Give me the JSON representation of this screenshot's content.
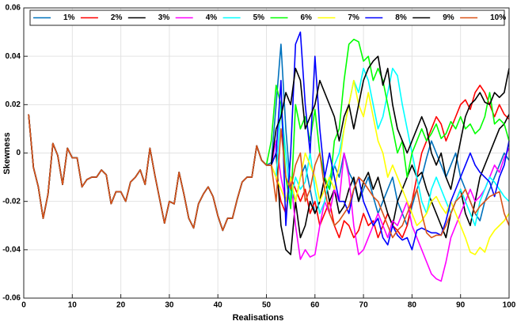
{
  "chart_data": {
    "type": "line",
    "xlabel": "Realisations",
    "ylabel": "Skewness",
    "x": [
      1,
      2,
      3,
      4,
      5,
      6,
      7,
      8,
      9,
      10,
      11,
      12,
      13,
      14,
      15,
      16,
      17,
      18,
      19,
      20,
      21,
      22,
      23,
      24,
      25,
      26,
      27,
      28,
      29,
      30,
      31,
      32,
      33,
      34,
      35,
      36,
      37,
      38,
      39,
      40,
      41,
      42,
      43,
      44,
      45,
      46,
      47,
      48,
      49,
      50,
      51,
      52,
      53,
      54,
      55,
      56,
      57,
      58,
      59,
      60,
      61,
      62,
      63,
      64,
      65,
      66,
      67,
      68,
      69,
      70,
      71,
      72,
      73,
      74,
      75,
      76,
      77,
      78,
      79,
      80,
      81,
      82,
      83,
      84,
      85,
      86,
      87,
      88,
      89,
      90,
      91,
      92,
      93,
      94,
      95,
      96,
      97,
      98,
      99,
      100
    ],
    "xlim": [
      0,
      100
    ],
    "xticks": [
      0,
      10,
      20,
      30,
      40,
      50,
      60,
      70,
      80,
      90,
      100
    ],
    "ylim": [
      -0.06,
      0.06
    ],
    "yticks": [
      -0.06,
      -0.04,
      -0.02,
      0,
      0.02,
      0.04,
      0.06
    ],
    "grid": true,
    "legend": "top",
    "series": [
      {
        "name": "1%",
        "color": "#0072bd",
        "values": [
          0.016,
          -0.006,
          -0.014,
          -0.027,
          -0.017,
          0.004,
          -0.001,
          -0.013,
          0.002,
          -0.002,
          -0.002,
          -0.014,
          -0.011,
          -0.01,
          -0.01,
          -0.007,
          -0.009,
          -0.021,
          -0.016,
          -0.016,
          -0.02,
          -0.012,
          -0.01,
          -0.007,
          -0.013,
          0.002,
          -0.009,
          -0.019,
          -0.029,
          -0.02,
          -0.021,
          -0.008,
          -0.017,
          -0.027,
          -0.031,
          -0.021,
          -0.017,
          -0.014,
          -0.018,
          -0.026,
          -0.032,
          -0.027,
          -0.027,
          -0.019,
          -0.012,
          -0.01,
          -0.01,
          0.003,
          -0.003,
          -0.005,
          -0.004,
          0.02,
          0.045,
          0.01,
          -0.015,
          -0.02,
          -0.01,
          -0.005,
          -0.015,
          -0.025,
          -0.02,
          -0.01,
          -0.015,
          -0.005,
          -0.01,
          0.0,
          -0.008,
          -0.012,
          -0.02,
          -0.015,
          -0.01,
          -0.018,
          -0.025,
          -0.02,
          -0.015,
          -0.01,
          -0.02,
          -0.025,
          -0.03,
          -0.022,
          -0.015,
          -0.01,
          -0.002,
          0.005,
          0.0,
          -0.005,
          -0.01,
          -0.005,
          0.0,
          -0.01,
          -0.015,
          -0.02,
          -0.025,
          -0.028,
          -0.02,
          -0.015,
          -0.01,
          -0.005,
          0.0,
          -0.003
        ]
      },
      {
        "name": "2%",
        "color": "#ff0000",
        "values": [
          0.016,
          -0.006,
          -0.014,
          -0.027,
          -0.017,
          0.004,
          -0.001,
          -0.013,
          0.002,
          -0.002,
          -0.002,
          -0.014,
          -0.011,
          -0.01,
          -0.01,
          -0.007,
          -0.009,
          -0.021,
          -0.016,
          -0.016,
          -0.02,
          -0.012,
          -0.01,
          -0.007,
          -0.013,
          0.002,
          -0.009,
          -0.019,
          -0.029,
          -0.02,
          -0.021,
          -0.008,
          -0.017,
          -0.027,
          -0.031,
          -0.021,
          -0.017,
          -0.014,
          -0.018,
          -0.026,
          -0.032,
          -0.027,
          -0.027,
          -0.019,
          -0.012,
          -0.01,
          -0.01,
          0.003,
          -0.003,
          -0.005,
          -0.005,
          -0.01,
          -0.02,
          -0.025,
          -0.01,
          -0.015,
          -0.02,
          -0.015,
          -0.025,
          -0.02,
          -0.03,
          -0.025,
          -0.02,
          -0.03,
          -0.035,
          -0.028,
          -0.03,
          -0.035,
          -0.032,
          -0.025,
          -0.03,
          -0.028,
          -0.035,
          -0.03,
          -0.025,
          -0.03,
          -0.032,
          -0.035,
          -0.03,
          -0.02,
          -0.01,
          0.0,
          0.005,
          0.01,
          0.015,
          0.012,
          0.005,
          0.01,
          0.015,
          0.02,
          0.022,
          0.018,
          0.025,
          0.028,
          0.025,
          0.02,
          0.015,
          0.02,
          0.016,
          0.014
        ]
      },
      {
        "name": "3%",
        "color": "#000000",
        "values": [
          0.016,
          -0.006,
          -0.014,
          -0.027,
          -0.017,
          0.004,
          -0.001,
          -0.013,
          0.002,
          -0.002,
          -0.002,
          -0.014,
          -0.011,
          -0.01,
          -0.01,
          -0.007,
          -0.009,
          -0.021,
          -0.016,
          -0.016,
          -0.02,
          -0.012,
          -0.01,
          -0.007,
          -0.013,
          0.002,
          -0.009,
          -0.019,
          -0.029,
          -0.02,
          -0.021,
          -0.008,
          -0.017,
          -0.027,
          -0.031,
          -0.021,
          -0.017,
          -0.014,
          -0.018,
          -0.026,
          -0.032,
          -0.027,
          -0.027,
          -0.019,
          -0.012,
          -0.01,
          -0.01,
          0.003,
          -0.003,
          -0.005,
          -0.005,
          0.0,
          -0.03,
          -0.04,
          -0.042,
          -0.02,
          -0.035,
          -0.03,
          -0.02,
          -0.025,
          -0.02,
          -0.01,
          -0.02,
          -0.015,
          -0.025,
          -0.022,
          -0.015,
          -0.01,
          -0.02,
          -0.012,
          -0.008,
          -0.015,
          -0.01,
          -0.018,
          -0.025,
          -0.03,
          -0.02,
          -0.015,
          -0.01,
          -0.005,
          -0.01,
          -0.008,
          -0.015,
          -0.02,
          -0.025,
          -0.03,
          -0.035,
          -0.025,
          -0.02,
          -0.015,
          -0.025,
          -0.03,
          -0.02,
          -0.01,
          -0.005,
          0.0,
          0.005,
          0.01,
          0.012,
          0.016
        ]
      },
      {
        "name": "4%",
        "color": "#ff00ff",
        "values": [
          0.016,
          -0.006,
          -0.014,
          -0.027,
          -0.017,
          0.004,
          -0.001,
          -0.013,
          0.002,
          -0.002,
          -0.002,
          -0.014,
          -0.011,
          -0.01,
          -0.01,
          -0.007,
          -0.009,
          -0.021,
          -0.016,
          -0.016,
          -0.02,
          -0.012,
          -0.01,
          -0.007,
          -0.013,
          0.002,
          -0.009,
          -0.019,
          -0.029,
          -0.02,
          -0.021,
          -0.008,
          -0.017,
          -0.027,
          -0.031,
          -0.021,
          -0.017,
          -0.014,
          -0.018,
          -0.026,
          -0.032,
          -0.027,
          -0.027,
          -0.019,
          -0.012,
          -0.01,
          -0.01,
          0.003,
          -0.003,
          -0.005,
          -0.005,
          0.005,
          -0.01,
          -0.02,
          -0.01,
          -0.03,
          -0.044,
          -0.04,
          -0.043,
          -0.042,
          -0.03,
          -0.02,
          -0.025,
          -0.015,
          -0.02,
          0.0,
          -0.01,
          -0.03,
          -0.042,
          -0.04,
          -0.035,
          -0.03,
          -0.025,
          -0.03,
          -0.035,
          -0.028,
          -0.03,
          -0.025,
          -0.02,
          -0.03,
          -0.035,
          -0.04,
          -0.045,
          -0.05,
          -0.052,
          -0.053,
          -0.045,
          -0.035,
          -0.03,
          -0.025,
          -0.02,
          -0.015,
          -0.02,
          -0.018,
          -0.015,
          -0.01,
          -0.005,
          -0.008,
          -0.002,
          0.002
        ]
      },
      {
        "name": "5%",
        "color": "#00ffff",
        "values": [
          0.016,
          -0.006,
          -0.014,
          -0.027,
          -0.017,
          0.004,
          -0.001,
          -0.013,
          0.002,
          -0.002,
          -0.002,
          -0.014,
          -0.011,
          -0.01,
          -0.01,
          -0.007,
          -0.009,
          -0.021,
          -0.016,
          -0.016,
          -0.02,
          -0.012,
          -0.01,
          -0.007,
          -0.013,
          0.002,
          -0.009,
          -0.019,
          -0.029,
          -0.02,
          -0.021,
          -0.008,
          -0.017,
          -0.027,
          -0.031,
          -0.021,
          -0.017,
          -0.014,
          -0.018,
          -0.026,
          -0.032,
          -0.027,
          -0.027,
          -0.019,
          -0.012,
          -0.01,
          -0.01,
          0.003,
          -0.003,
          -0.005,
          -0.005,
          -0.01,
          0.02,
          0.0,
          -0.02,
          -0.01,
          -0.015,
          -0.012,
          0.0,
          -0.015,
          -0.025,
          -0.02,
          -0.01,
          -0.005,
          0.0,
          0.01,
          0.02,
          0.03,
          0.025,
          0.035,
          0.03,
          0.02,
          0.01,
          0.015,
          0.025,
          0.035,
          0.032,
          0.02,
          0.01,
          0.0,
          -0.01,
          -0.02,
          -0.025,
          -0.015,
          -0.01,
          -0.015,
          -0.02,
          -0.025,
          -0.02,
          -0.015,
          -0.02,
          -0.025,
          -0.03,
          -0.02,
          -0.015,
          -0.01,
          -0.012,
          -0.015,
          -0.018,
          -0.02
        ]
      },
      {
        "name": "6%",
        "color": "#00ff00",
        "values": [
          0.016,
          -0.006,
          -0.014,
          -0.027,
          -0.017,
          0.004,
          -0.001,
          -0.013,
          0.002,
          -0.002,
          -0.002,
          -0.014,
          -0.011,
          -0.01,
          -0.01,
          -0.007,
          -0.009,
          -0.021,
          -0.016,
          -0.016,
          -0.02,
          -0.012,
          -0.01,
          -0.007,
          -0.013,
          0.002,
          -0.009,
          -0.019,
          -0.029,
          -0.02,
          -0.021,
          -0.008,
          -0.017,
          -0.027,
          -0.031,
          -0.021,
          -0.017,
          -0.014,
          -0.018,
          -0.026,
          -0.032,
          -0.027,
          -0.027,
          -0.019,
          -0.012,
          -0.01,
          -0.01,
          0.003,
          -0.003,
          -0.005,
          0.005,
          0.028,
          0.02,
          -0.01,
          -0.023,
          0.02,
          0.01,
          0.015,
          0.005,
          0.018,
          0.0,
          -0.01,
          -0.015,
          0.005,
          0.01,
          0.03,
          0.045,
          0.047,
          0.046,
          0.038,
          0.04,
          0.03,
          0.035,
          0.03,
          0.02,
          0.01,
          0.0,
          0.005,
          -0.01,
          0.0,
          0.005,
          0.01,
          0.005,
          0.008,
          0.012,
          0.006,
          0.008,
          0.013,
          0.01,
          0.015,
          0.01,
          0.012,
          0.008,
          0.01,
          0.015,
          0.025,
          0.012,
          0.014,
          0.012,
          0.005
        ]
      },
      {
        "name": "7%",
        "color": "#ffff00",
        "values": [
          0.016,
          -0.006,
          -0.014,
          -0.027,
          -0.017,
          0.004,
          -0.001,
          -0.013,
          0.002,
          -0.002,
          -0.002,
          -0.014,
          -0.011,
          -0.01,
          -0.01,
          -0.007,
          -0.009,
          -0.021,
          -0.016,
          -0.016,
          -0.02,
          -0.012,
          -0.01,
          -0.007,
          -0.013,
          0.002,
          -0.009,
          -0.019,
          -0.029,
          -0.02,
          -0.021,
          -0.008,
          -0.017,
          -0.027,
          -0.031,
          -0.021,
          -0.017,
          -0.014,
          -0.018,
          -0.026,
          -0.032,
          -0.027,
          -0.027,
          -0.019,
          -0.012,
          -0.01,
          -0.01,
          0.003,
          -0.003,
          -0.005,
          -0.005,
          -0.01,
          -0.015,
          -0.02,
          -0.01,
          -0.02,
          -0.01,
          0.0,
          -0.005,
          -0.01,
          -0.02,
          -0.015,
          -0.01,
          -0.015,
          -0.005,
          0.01,
          0.02,
          0.03,
          0.02,
          0.015,
          0.025,
          0.015,
          0.005,
          0.0,
          -0.01,
          -0.005,
          -0.01,
          -0.015,
          -0.02,
          -0.025,
          -0.03,
          -0.028,
          -0.025,
          -0.02,
          -0.018,
          -0.022,
          -0.025,
          -0.02,
          -0.025,
          -0.03,
          -0.035,
          -0.041,
          -0.042,
          -0.039,
          -0.041,
          -0.035,
          -0.032,
          -0.03,
          -0.028,
          -0.025
        ]
      },
      {
        "name": "8%",
        "color": "#0000ff",
        "values": [
          0.016,
          -0.006,
          -0.014,
          -0.027,
          -0.017,
          0.004,
          -0.001,
          -0.013,
          0.002,
          -0.002,
          -0.002,
          -0.014,
          -0.011,
          -0.01,
          -0.01,
          -0.007,
          -0.009,
          -0.021,
          -0.016,
          -0.016,
          -0.02,
          -0.012,
          -0.01,
          -0.007,
          -0.013,
          0.002,
          -0.009,
          -0.019,
          -0.029,
          -0.02,
          -0.021,
          -0.008,
          -0.017,
          -0.027,
          -0.031,
          -0.021,
          -0.017,
          -0.014,
          -0.018,
          -0.026,
          -0.032,
          -0.027,
          -0.027,
          -0.019,
          -0.012,
          -0.01,
          -0.01,
          0.003,
          -0.003,
          -0.005,
          -0.005,
          0.0,
          0.03,
          -0.03,
          0.0,
          0.045,
          0.05,
          0.02,
          0.0,
          0.04,
          0.01,
          -0.01,
          0.0,
          -0.01,
          -0.02,
          -0.02,
          -0.025,
          -0.015,
          -0.01,
          -0.02,
          -0.025,
          -0.03,
          -0.027,
          -0.035,
          -0.038,
          -0.03,
          -0.034,
          -0.036,
          -0.035,
          -0.04,
          -0.032,
          -0.031,
          -0.032,
          -0.033,
          -0.033,
          -0.034,
          -0.028,
          -0.02,
          -0.015,
          -0.01,
          -0.005,
          0.0,
          -0.005,
          -0.008,
          -0.01,
          -0.012,
          -0.018,
          -0.01,
          -0.005,
          0.005
        ]
      },
      {
        "name": "9%",
        "color": "#000000",
        "values": [
          0.016,
          -0.006,
          -0.014,
          -0.027,
          -0.017,
          0.004,
          -0.001,
          -0.013,
          0.002,
          -0.002,
          -0.002,
          -0.014,
          -0.011,
          -0.01,
          -0.01,
          -0.007,
          -0.009,
          -0.021,
          -0.016,
          -0.016,
          -0.02,
          -0.012,
          -0.01,
          -0.007,
          -0.013,
          0.002,
          -0.009,
          -0.019,
          -0.029,
          -0.02,
          -0.021,
          -0.008,
          -0.017,
          -0.027,
          -0.031,
          -0.021,
          -0.017,
          -0.014,
          -0.018,
          -0.026,
          -0.032,
          -0.027,
          -0.027,
          -0.019,
          -0.012,
          -0.01,
          -0.01,
          0.003,
          -0.003,
          -0.005,
          -0.005,
          0.01,
          0.015,
          0.025,
          0.02,
          0.035,
          0.03,
          0.01,
          0.015,
          0.02,
          0.03,
          0.025,
          0.02,
          0.015,
          0.005,
          0.015,
          0.02,
          0.01,
          0.02,
          0.03,
          0.035,
          0.038,
          0.04,
          0.028,
          0.035,
          0.02,
          0.01,
          0.005,
          0.0,
          0.005,
          0.01,
          0.015,
          0.01,
          0.0,
          -0.005,
          0.0,
          -0.01,
          -0.015,
          -0.005,
          0.005,
          0.015,
          0.02,
          0.022,
          0.025,
          0.021,
          0.02,
          0.025,
          0.023,
          0.025,
          0.035
        ]
      },
      {
        "name": "10%",
        "color": "#d95319",
        "values": [
          0.016,
          -0.006,
          -0.014,
          -0.027,
          -0.017,
          0.004,
          -0.001,
          -0.013,
          0.002,
          -0.002,
          -0.002,
          -0.014,
          -0.011,
          -0.01,
          -0.01,
          -0.007,
          -0.009,
          -0.021,
          -0.016,
          -0.016,
          -0.02,
          -0.012,
          -0.01,
          -0.007,
          -0.013,
          0.002,
          -0.009,
          -0.019,
          -0.029,
          -0.02,
          -0.021,
          -0.008,
          -0.017,
          -0.027,
          -0.031,
          -0.021,
          -0.017,
          -0.014,
          -0.018,
          -0.026,
          -0.032,
          -0.027,
          -0.027,
          -0.019,
          -0.012,
          -0.01,
          -0.01,
          0.003,
          -0.003,
          -0.005,
          -0.005,
          -0.02,
          0.01,
          -0.01,
          -0.015,
          -0.005,
          0.0,
          -0.02,
          -0.015,
          -0.005,
          0.0,
          -0.015,
          -0.025,
          -0.03,
          -0.028,
          -0.025,
          -0.022,
          -0.015,
          -0.01,
          -0.012,
          -0.015,
          -0.018,
          -0.02,
          -0.025,
          -0.03,
          -0.035,
          -0.032,
          -0.03,
          -0.025,
          -0.02,
          -0.015,
          -0.025,
          -0.033,
          -0.035,
          -0.034,
          -0.034,
          -0.03,
          -0.025,
          -0.02,
          -0.018,
          -0.015,
          -0.02,
          -0.025,
          -0.022,
          -0.02,
          -0.018,
          -0.017,
          -0.016,
          -0.025,
          -0.03
        ]
      }
    ]
  }
}
